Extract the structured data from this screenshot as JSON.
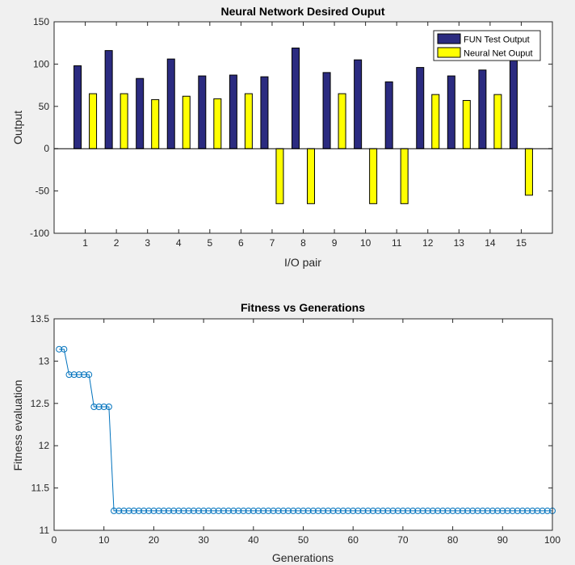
{
  "chart_data": [
    {
      "type": "bar",
      "title": "Neural Network Desired Ouput",
      "xlabel": "I/O pair",
      "ylabel": "Output",
      "categories": [
        "1",
        "2",
        "3",
        "4",
        "5",
        "6",
        "7",
        "8",
        "9",
        "10",
        "11",
        "12",
        "13",
        "14",
        "15"
      ],
      "ylim": [
        -100,
        150
      ],
      "yticks": [
        "-100",
        "-50",
        "0",
        "50",
        "100",
        "150"
      ],
      "legend_position": "top-right",
      "series": [
        {
          "name": "FUN Test Output",
          "color": "#2b2b80",
          "values": [
            98,
            116,
            83,
            106,
            86,
            87,
            85,
            119,
            90,
            105,
            79,
            96,
            86,
            93,
            104
          ]
        },
        {
          "name": "Neural Net Ouput",
          "color": "#ffff00",
          "values": [
            65,
            65,
            58,
            62,
            59,
            65,
            -65,
            -65,
            65,
            -65,
            -65,
            64,
            57,
            64,
            -55
          ]
        }
      ]
    },
    {
      "type": "line",
      "title": "Fitness vs Generations",
      "xlabel": "Generations",
      "ylabel": "Fitness evaluation",
      "xlim": [
        0,
        100
      ],
      "ylim": [
        11,
        13.5
      ],
      "xticks": [
        "0",
        "10",
        "20",
        "30",
        "40",
        "50",
        "60",
        "70",
        "80",
        "90",
        "100"
      ],
      "yticks": [
        "11",
        "11.5",
        "12",
        "12.5",
        "13",
        "13.5"
      ],
      "marker": "circle",
      "color": "#0072bd",
      "x_start": 1,
      "values": [
        13.14,
        13.14,
        12.84,
        12.84,
        12.84,
        12.84,
        12.84,
        12.46,
        12.46,
        12.46,
        12.46,
        11.23,
        11.23,
        11.23,
        11.23,
        11.23,
        11.23,
        11.23,
        11.23,
        11.23,
        11.23,
        11.23,
        11.23,
        11.23,
        11.23,
        11.23,
        11.23,
        11.23,
        11.23,
        11.23,
        11.23,
        11.23,
        11.23,
        11.23,
        11.23,
        11.23,
        11.23,
        11.23,
        11.23,
        11.23,
        11.23,
        11.23,
        11.23,
        11.23,
        11.23,
        11.23,
        11.23,
        11.23,
        11.23,
        11.23,
        11.23,
        11.23,
        11.23,
        11.23,
        11.23,
        11.23,
        11.23,
        11.23,
        11.23,
        11.23,
        11.23,
        11.23,
        11.23,
        11.23,
        11.23,
        11.23,
        11.23,
        11.23,
        11.23,
        11.23,
        11.23,
        11.23,
        11.23,
        11.23,
        11.23,
        11.23,
        11.23,
        11.23,
        11.23,
        11.23,
        11.23,
        11.23,
        11.23,
        11.23,
        11.23,
        11.23,
        11.23,
        11.23,
        11.23,
        11.23,
        11.23,
        11.23,
        11.23,
        11.23,
        11.23,
        11.23,
        11.23,
        11.23,
        11.23,
        11.23
      ]
    }
  ]
}
